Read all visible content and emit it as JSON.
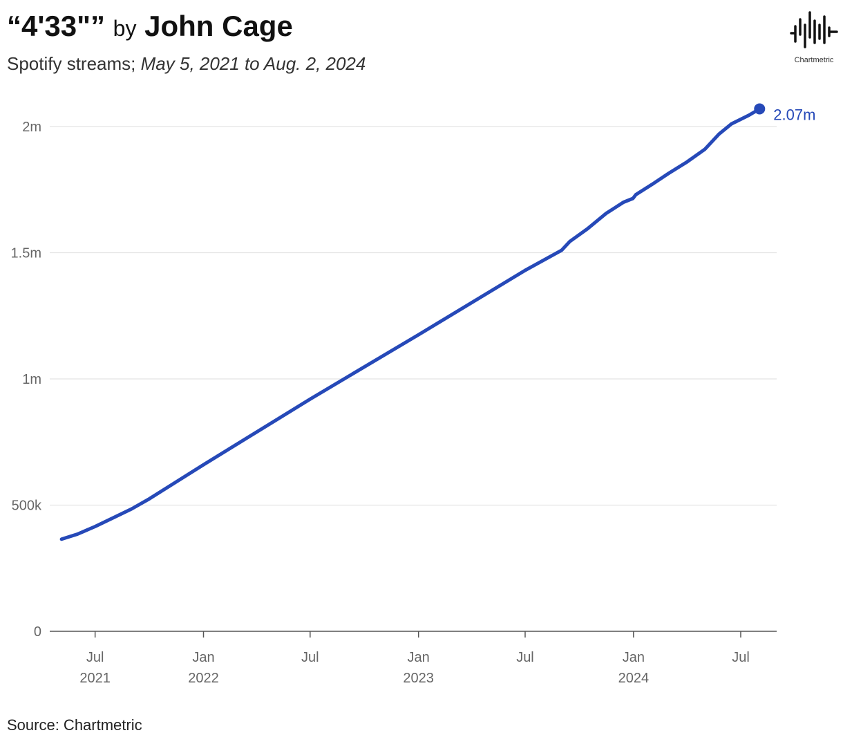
{
  "header": {
    "song": "“4'33\"”",
    "by": "by",
    "artist": "John Cage",
    "subtitle_prefix": "Spotify streams;",
    "subtitle_range": "May 5, 2021 to Aug. 2, 2024"
  },
  "logo": {
    "text": "Chartmetric",
    "icon": "chartmetric-waveform-logo"
  },
  "source": "Source: Chartmetric",
  "colors": {
    "line": "#2649b8",
    "grid": "#e3e3e3",
    "axis": "#555555",
    "text_muted": "#666666"
  },
  "chart_data": {
    "type": "line",
    "title": "“4'33\"” by John Cage",
    "subtitle": "Spotify streams; May 5, 2021 to Aug. 2, 2024",
    "xlabel": "",
    "ylabel": "",
    "xlim": [
      "2021-04-15",
      "2024-08-31"
    ],
    "ylim": [
      0,
      2200000
    ],
    "y_ticks": [
      {
        "value": 0,
        "label": "0"
      },
      {
        "value": 500000,
        "label": "500k"
      },
      {
        "value": 1000000,
        "label": "1m"
      },
      {
        "value": 1500000,
        "label": "1.5m"
      },
      {
        "value": 2000000,
        "label": "2m"
      }
    ],
    "x_ticks": [
      {
        "date": "2021-07-01",
        "label": "Jul",
        "year": "2021"
      },
      {
        "date": "2022-01-01",
        "label": "Jan",
        "year": "2022"
      },
      {
        "date": "2022-07-01",
        "label": "Jul",
        "year": ""
      },
      {
        "date": "2023-01-01",
        "label": "Jan",
        "year": "2023"
      },
      {
        "date": "2023-07-01",
        "label": "Jul",
        "year": ""
      },
      {
        "date": "2024-01-01",
        "label": "Jan",
        "year": "2024"
      },
      {
        "date": "2024-07-01",
        "label": "Jul",
        "year": ""
      }
    ],
    "grid": true,
    "series": [
      {
        "name": "Spotify streams",
        "points": [
          {
            "x": "2021-05-05",
            "y": 365000
          },
          {
            "x": "2021-06-01",
            "y": 385000
          },
          {
            "x": "2021-07-01",
            "y": 415000
          },
          {
            "x": "2021-08-01",
            "y": 450000
          },
          {
            "x": "2021-09-01",
            "y": 485000
          },
          {
            "x": "2021-10-01",
            "y": 525000
          },
          {
            "x": "2022-01-01",
            "y": 660000
          },
          {
            "x": "2022-07-01",
            "y": 920000
          },
          {
            "x": "2023-01-01",
            "y": 1175000
          },
          {
            "x": "2023-07-01",
            "y": 1430000
          },
          {
            "x": "2023-09-01",
            "y": 1510000
          },
          {
            "x": "2023-09-15",
            "y": 1545000
          },
          {
            "x": "2023-10-15",
            "y": 1595000
          },
          {
            "x": "2023-11-15",
            "y": 1655000
          },
          {
            "x": "2023-12-15",
            "y": 1700000
          },
          {
            "x": "2023-12-31",
            "y": 1715000
          },
          {
            "x": "2024-01-05",
            "y": 1730000
          },
          {
            "x": "2024-02-01",
            "y": 1770000
          },
          {
            "x": "2024-03-01",
            "y": 1815000
          },
          {
            "x": "2024-04-01",
            "y": 1860000
          },
          {
            "x": "2024-05-01",
            "y": 1910000
          },
          {
            "x": "2024-05-25",
            "y": 1970000
          },
          {
            "x": "2024-06-15",
            "y": 2010000
          },
          {
            "x": "2024-07-15",
            "y": 2045000
          },
          {
            "x": "2024-08-02",
            "y": 2070000
          }
        ]
      }
    ],
    "end_label": "2.07m"
  }
}
